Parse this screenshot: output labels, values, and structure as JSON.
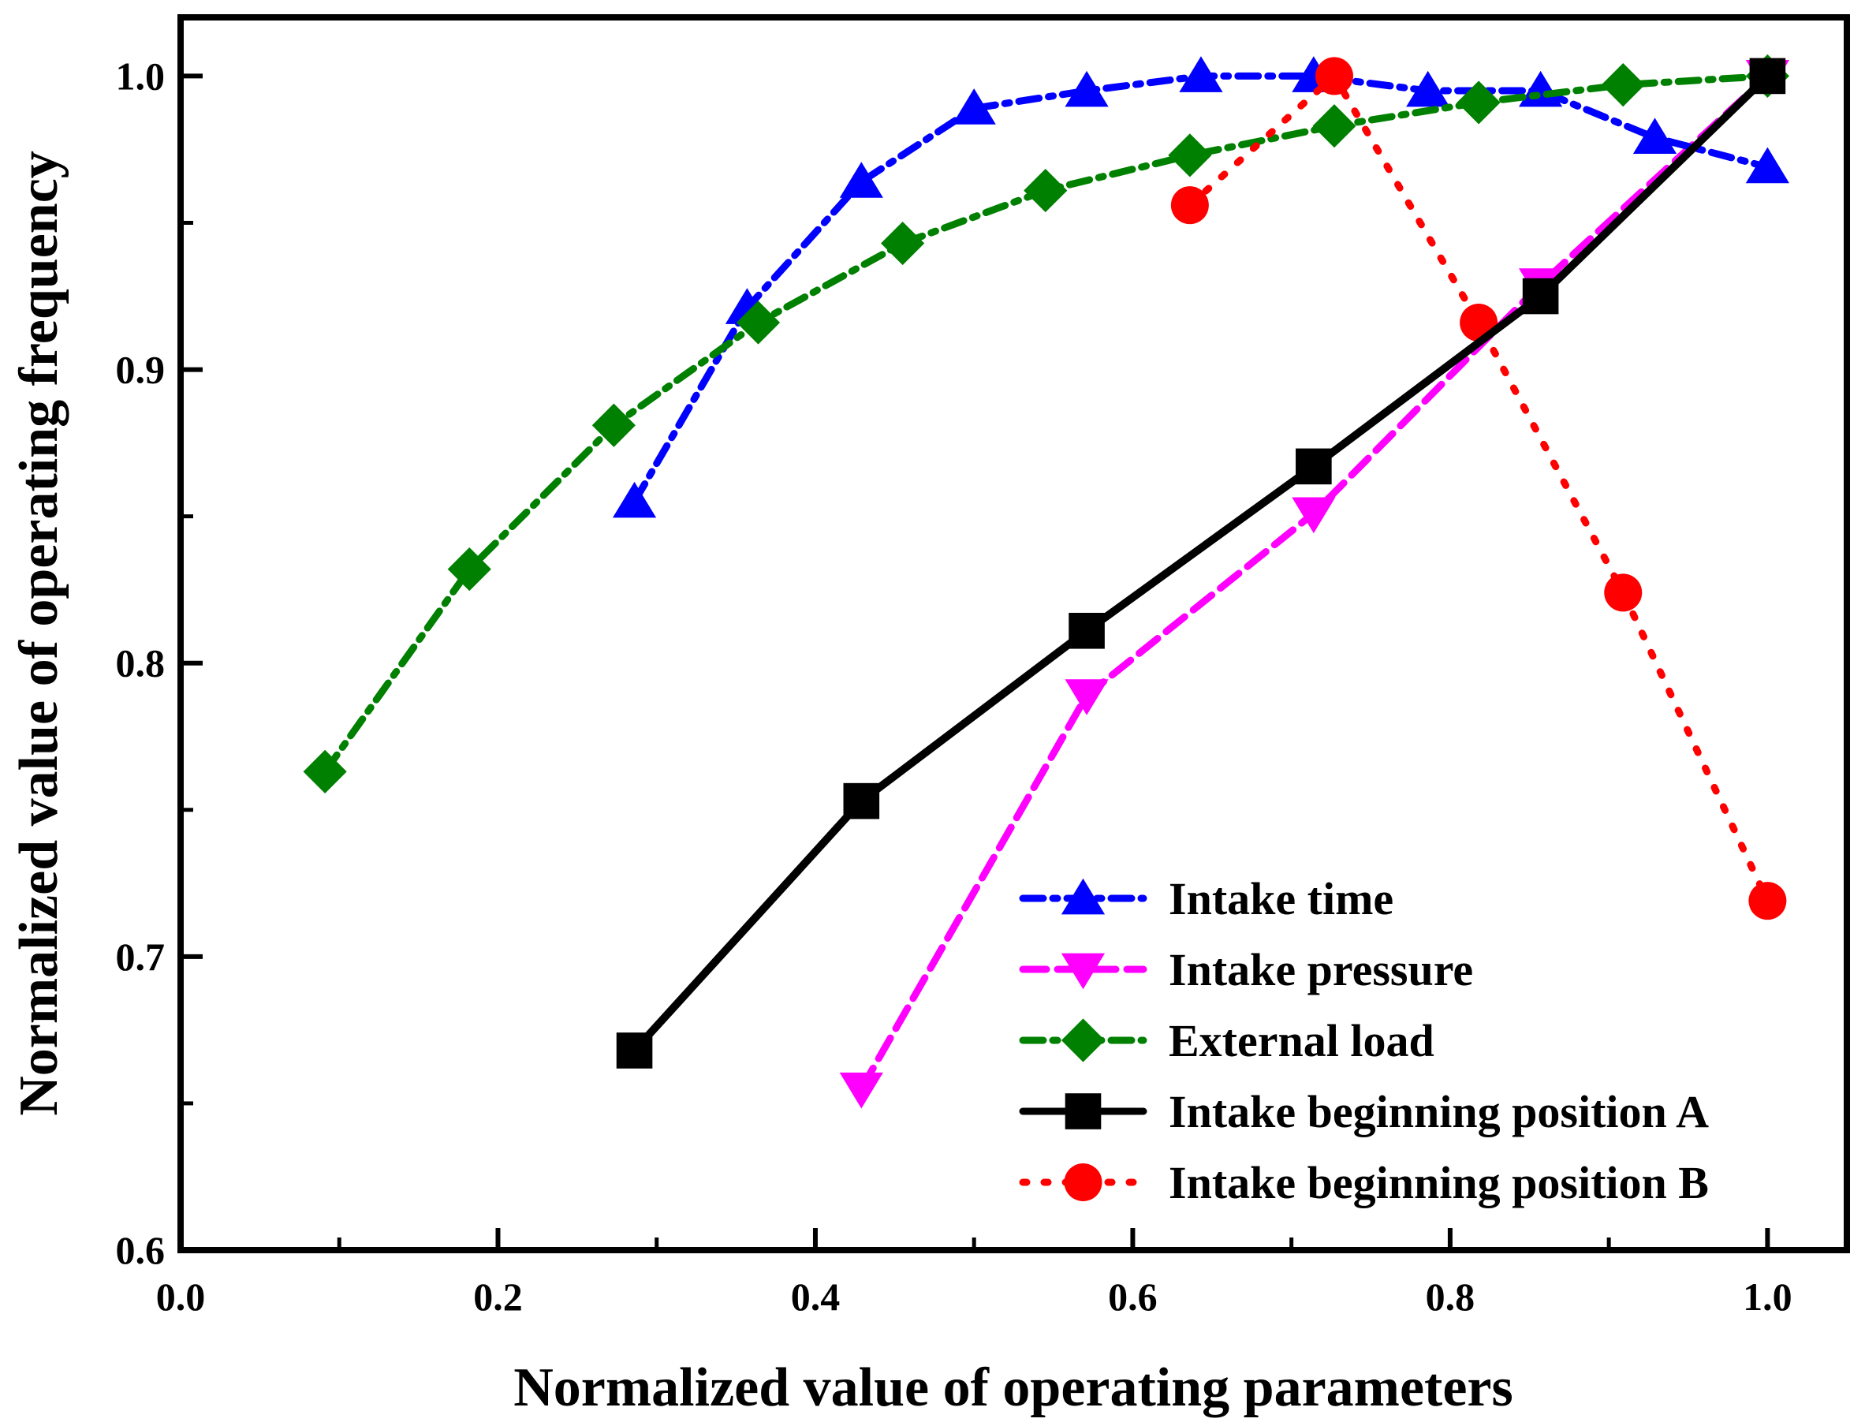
{
  "chart_data": {
    "type": "line",
    "title": "",
    "xlabel": "Normalized value of operating parameters",
    "ylabel": "Normalized value of operating frequency",
    "xlim": [
      0.0,
      1.05
    ],
    "ylim": [
      0.6,
      1.02
    ],
    "xticks": [
      0.0,
      0.2,
      0.4,
      0.6,
      0.8,
      1.0
    ],
    "xtick_labels": [
      "0.0",
      "0.2",
      "0.4",
      "0.6",
      "0.8",
      "1.0"
    ],
    "yticks": [
      0.6,
      0.7,
      0.8,
      0.9,
      1.0
    ],
    "ytick_labels": [
      "0.6",
      "0.7",
      "0.8",
      "0.9",
      "1.0"
    ],
    "grid": false,
    "legend_position": "bottom-right",
    "series": [
      {
        "name": "Intake time",
        "color": "#0000ff",
        "line_style": "dash-dot",
        "marker": "triangle-up",
        "x": [
          0.286,
          0.357,
          0.429,
          0.5,
          0.571,
          0.643,
          0.714,
          0.786,
          0.857,
          0.929,
          1.0
        ],
        "y": [
          0.855,
          0.921,
          0.964,
          0.989,
          0.995,
          1.0,
          1.0,
          0.995,
          0.995,
          0.979,
          0.969
        ]
      },
      {
        "name": "Intake pressure",
        "color": "#ff00ff",
        "line_style": "dashed",
        "marker": "triangle-down",
        "x": [
          0.429,
          0.571,
          0.714,
          0.857,
          1.0
        ],
        "y": [
          0.655,
          0.789,
          0.851,
          0.929,
          1.0
        ]
      },
      {
        "name": "External load",
        "color": "#008000",
        "line_style": "dash-dot",
        "marker": "diamond",
        "x": [
          0.091,
          0.182,
          0.273,
          0.364,
          0.455,
          0.545,
          0.636,
          0.727,
          0.818,
          0.909,
          1.0
        ],
        "y": [
          0.763,
          0.832,
          0.881,
          0.916,
          0.943,
          0.961,
          0.973,
          0.983,
          0.991,
          0.997,
          1.0
        ]
      },
      {
        "name": "Intake beginning position A",
        "color": "#000000",
        "line_style": "solid",
        "marker": "square",
        "x": [
          0.286,
          0.429,
          0.571,
          0.714,
          0.857,
          1.0
        ],
        "y": [
          0.668,
          0.753,
          0.811,
          0.867,
          0.925,
          1.0
        ]
      },
      {
        "name": "Intake beginning position B",
        "color": "#ff0000",
        "line_style": "dotted",
        "marker": "circle",
        "x": [
          0.636,
          0.727,
          0.818,
          0.909,
          1.0
        ],
        "y": [
          0.956,
          1.0,
          0.916,
          0.824,
          0.719
        ]
      }
    ]
  }
}
